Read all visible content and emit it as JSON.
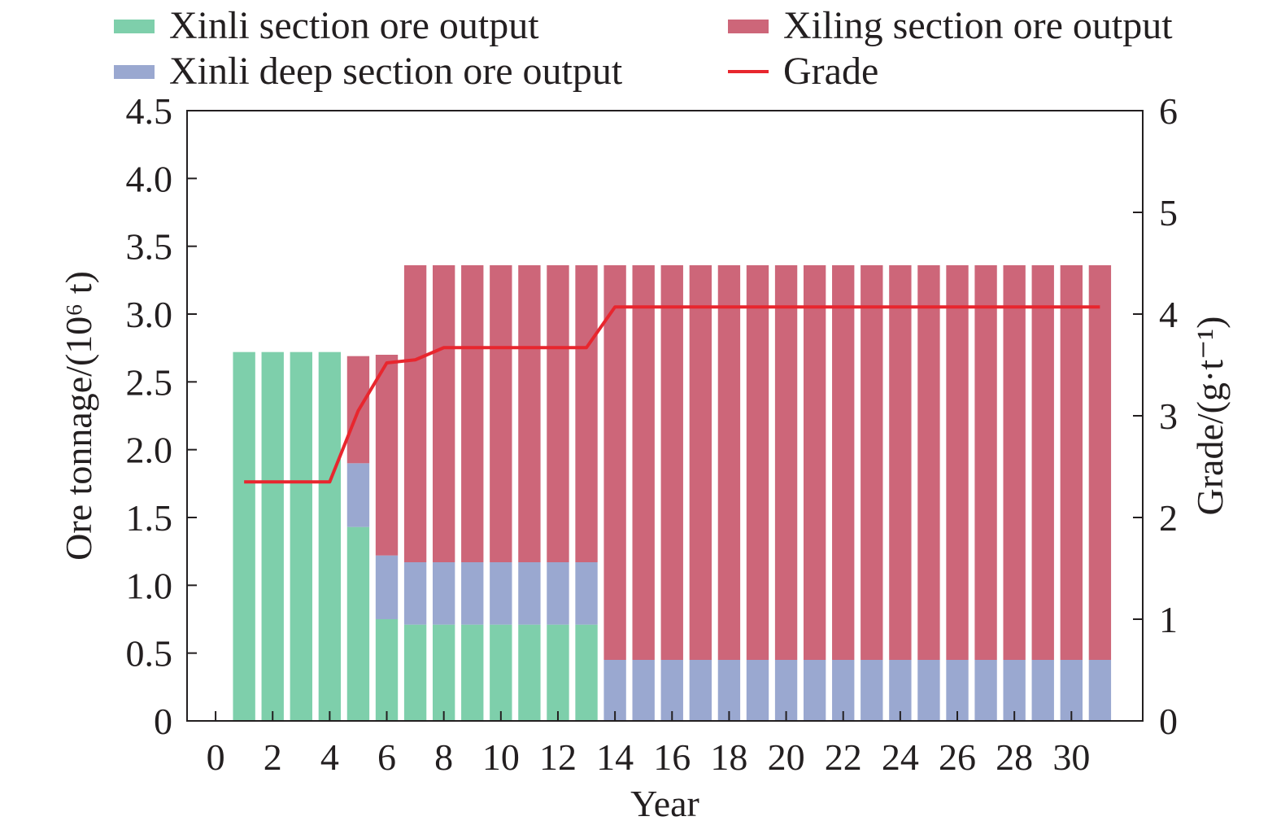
{
  "chart_data": {
    "type": "bar",
    "stacked": true,
    "x": [
      1,
      2,
      3,
      4,
      5,
      6,
      7,
      8,
      9,
      10,
      11,
      12,
      13,
      14,
      15,
      16,
      17,
      18,
      19,
      20,
      21,
      22,
      23,
      24,
      25,
      26,
      27,
      28,
      29,
      30,
      31
    ],
    "series": [
      {
        "name": "Xinli section ore output",
        "color": "#7ecfab",
        "values": [
          2.72,
          2.72,
          2.72,
          2.72,
          1.43,
          0.75,
          0.71,
          0.71,
          0.71,
          0.71,
          0.71,
          0.71,
          0.71,
          0,
          0,
          0,
          0,
          0,
          0,
          0,
          0,
          0,
          0,
          0,
          0,
          0,
          0,
          0,
          0,
          0,
          0
        ]
      },
      {
        "name": "Xinli deep section ore output",
        "color": "#9aa8d0",
        "values": [
          0,
          0,
          0,
          0,
          0.47,
          0.47,
          0.46,
          0.46,
          0.46,
          0.46,
          0.46,
          0.46,
          0.46,
          0.45,
          0.45,
          0.45,
          0.45,
          0.45,
          0.45,
          0.45,
          0.45,
          0.45,
          0.45,
          0.45,
          0.45,
          0.45,
          0.45,
          0.45,
          0.45,
          0.45,
          0.45
        ]
      },
      {
        "name": "Xiling section ore output",
        "color": "#cd6679",
        "values": [
          0,
          0,
          0,
          0,
          0.79,
          1.48,
          2.19,
          2.19,
          2.19,
          2.19,
          2.19,
          2.19,
          2.19,
          2.91,
          2.91,
          2.91,
          2.91,
          2.91,
          2.91,
          2.91,
          2.91,
          2.91,
          2.91,
          2.91,
          2.91,
          2.91,
          2.91,
          2.91,
          2.91,
          2.91,
          2.91
        ]
      }
    ],
    "line": {
      "name": "Grade",
      "color": "#e8262e",
      "axis": "right",
      "points": [
        [
          1,
          2.35
        ],
        [
          4,
          2.35
        ],
        [
          5,
          3.05
        ],
        [
          6,
          3.52
        ],
        [
          7,
          3.55
        ],
        [
          8,
          3.67
        ],
        [
          13,
          3.67
        ],
        [
          14,
          4.07
        ],
        [
          31,
          4.07
        ]
      ]
    },
    "xlabel": "Year",
    "ylabel": "Ore tonnage/(10⁶ t)",
    "y2label": "Grade/(g·t⁻¹)",
    "xlim": [
      -1,
      32.5
    ],
    "ylim": [
      0,
      4.5
    ],
    "y2lim": [
      0,
      6
    ],
    "xticks": [
      "0",
      "2",
      "4",
      "6",
      "8",
      "10",
      "12",
      "14",
      "16",
      "18",
      "20",
      "22",
      "24",
      "26",
      "28",
      "30"
    ],
    "yticks": [
      "0",
      "0.5",
      "1.0",
      "1.5",
      "2.0",
      "2.5",
      "3.0",
      "3.5",
      "4.0",
      "4.5"
    ],
    "y2ticks": [
      "0",
      "1",
      "2",
      "3",
      "4",
      "5",
      "6"
    ],
    "legend_position": "top",
    "grid": false
  }
}
